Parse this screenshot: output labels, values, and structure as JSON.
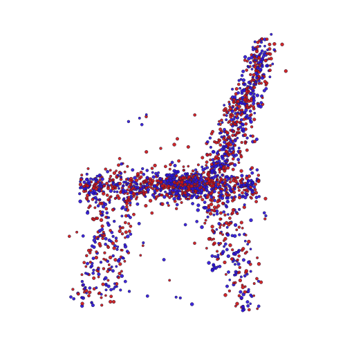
{
  "image": {
    "subject": "chair",
    "rendering": "3d-point-cloud",
    "background_color": "#ffffff",
    "point_colors": [
      "#cc1111",
      "#2a10d8"
    ],
    "point_edge_color": "#222244"
  }
}
